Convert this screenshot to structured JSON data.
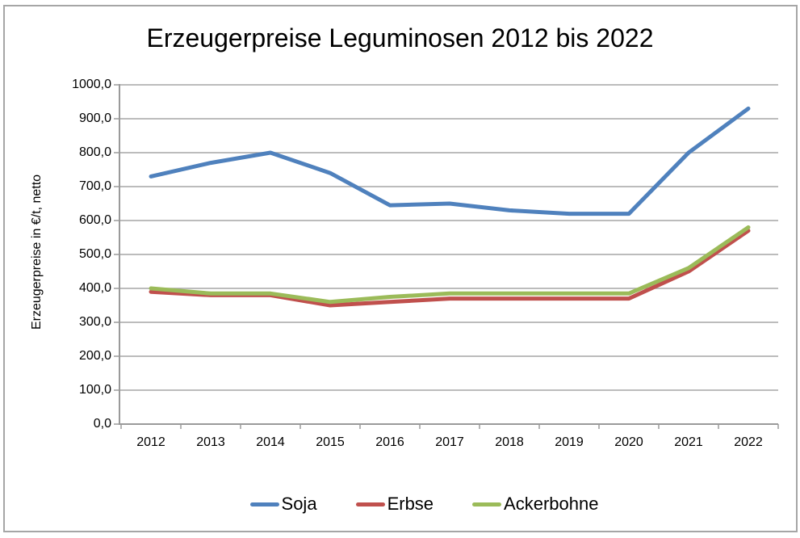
{
  "title": "Erzeugerpreise Leguminosen 2012 bis 2022",
  "y_axis_title": "Erzeugerpreise in €/t, netto",
  "chart_data": {
    "type": "line",
    "title": "Erzeugerpreise Leguminosen 2012 bis 2022",
    "xlabel": "",
    "ylabel": "Erzeugerpreise in €/t, netto",
    "categories": [
      "2012",
      "2013",
      "2014",
      "2015",
      "2016",
      "2017",
      "2018",
      "2019",
      "2020",
      "2021",
      "2022"
    ],
    "series": [
      {
        "name": "Soja",
        "color": "#4F81BD",
        "values": [
          730,
          770,
          800,
          740,
          645,
          650,
          630,
          620,
          620,
          800,
          930
        ]
      },
      {
        "name": "Erbse",
        "color": "#C0504D",
        "values": [
          390,
          380,
          380,
          350,
          360,
          370,
          370,
          370,
          370,
          450,
          570
        ]
      },
      {
        "name": "Ackerbohne",
        "color": "#9BBB59",
        "values": [
          400,
          385,
          385,
          360,
          375,
          385,
          385,
          385,
          385,
          460,
          580
        ]
      }
    ],
    "ylim": [
      0,
      1000
    ],
    "ytick_step": 100,
    "ytick_labels": [
      "0,0",
      "100,0",
      "200,0",
      "300,0",
      "400,0",
      "500,0",
      "600,0",
      "700,0",
      "800,0",
      "900,0",
      "1000,0"
    ],
    "grid": true,
    "legend_position": "bottom",
    "legend_entries": [
      "Soja",
      "Erbse",
      "Ackerbohne"
    ]
  },
  "colors": {
    "grid": "#a6a6a6",
    "axis": "#9a9a9a",
    "frame": "#a6a6a6",
    "text": "#000000"
  }
}
